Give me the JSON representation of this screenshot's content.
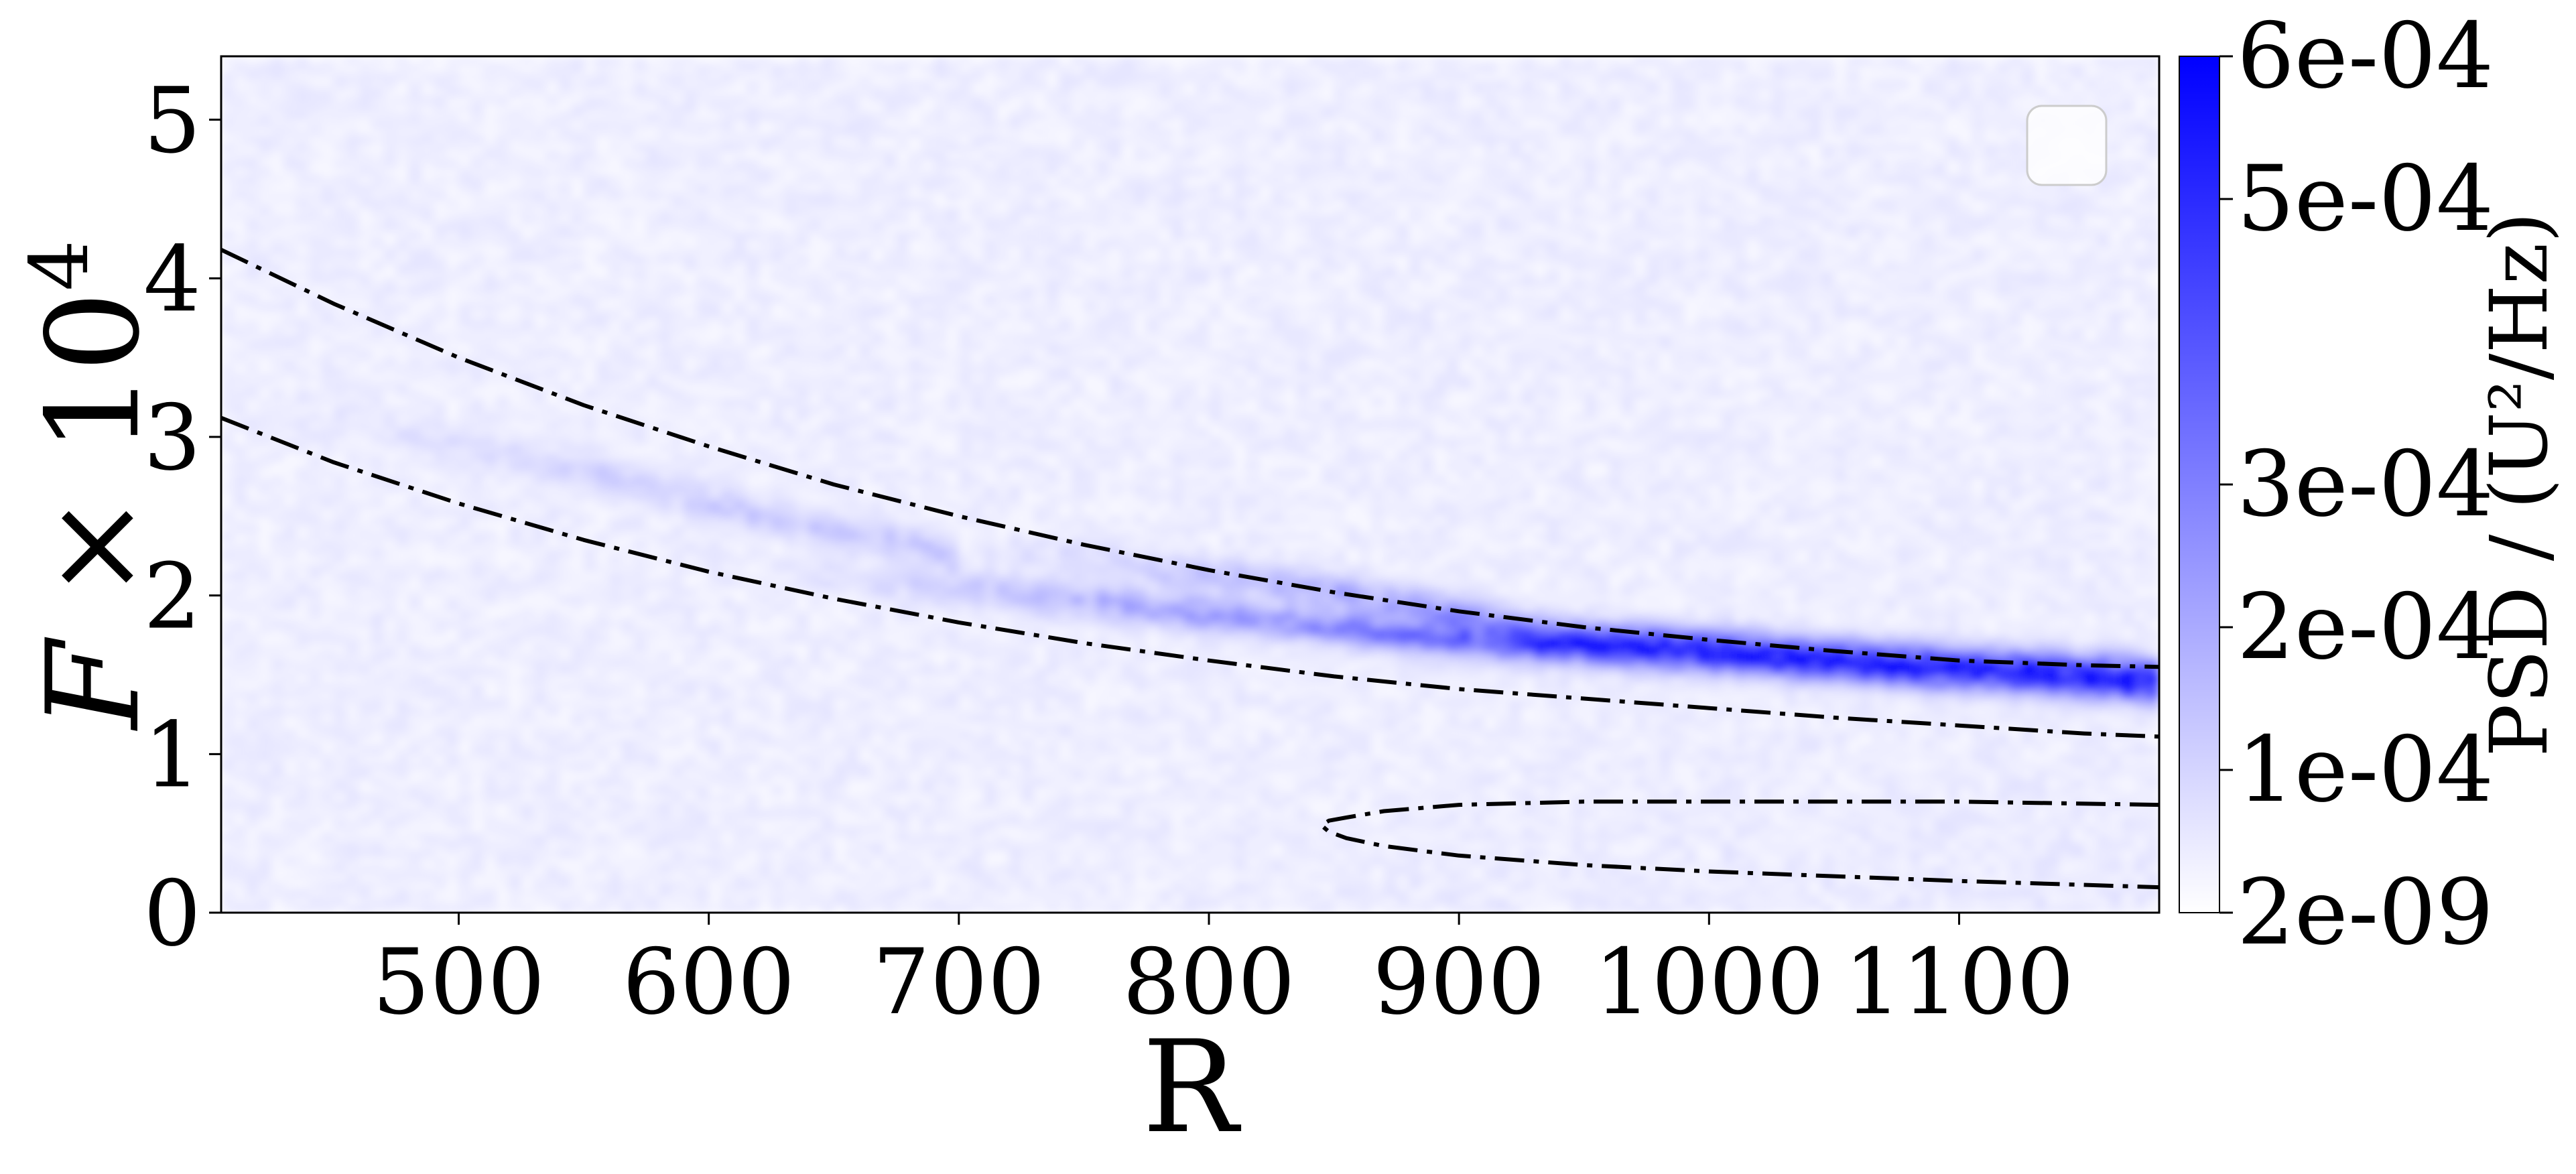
{
  "chart_data": {
    "type": "heatmap",
    "title": "",
    "xlabel": "R",
    "ylabel": "F × 10",
    "ylabel_exponent": "4",
    "xlim": [
      405,
      1180
    ],
    "ylim": [
      0,
      5.4
    ],
    "xticks": [
      "500",
      "600",
      "700",
      "800",
      "900",
      "1000",
      "1100"
    ],
    "xtick_values": [
      500,
      600,
      700,
      800,
      900,
      1000,
      1100
    ],
    "yticks": [
      "0",
      "1",
      "2",
      "3",
      "4",
      "5"
    ],
    "ytick_values": [
      0,
      1,
      2,
      3,
      4,
      5
    ],
    "colorbar": {
      "label": "PSD / (U²/Hz)",
      "ticks": [
        "2e-09",
        "1e-04",
        "2e-04",
        "3e-04",
        "5e-04",
        "6e-04"
      ],
      "tick_values": [
        2e-09,
        0.0001,
        0.0002,
        0.0003,
        0.0005,
        0.0006
      ],
      "range": [
        2e-09,
        0.0006
      ],
      "color_low": "#ffffff",
      "color_high": "#0000ff"
    },
    "legend": {
      "placement": "top-right",
      "entries": []
    },
    "grid": false,
    "background_noise_level": 4e-05,
    "ridges": [
      {
        "x_start": 620,
        "x_end": 1180,
        "y": [
          [
            620,
            2.15
          ],
          [
            700,
            2.05
          ],
          [
            760,
            1.95
          ],
          [
            820,
            1.85
          ],
          [
            880,
            1.75
          ],
          [
            940,
            1.67
          ],
          [
            1000,
            1.62
          ],
          [
            1060,
            1.55
          ],
          [
            1120,
            1.48
          ],
          [
            1180,
            1.42
          ]
        ],
        "peak": 0.0005
      },
      {
        "x_start": 700,
        "x_end": 1180,
        "y": [
          [
            700,
            2.3
          ],
          [
            760,
            2.2
          ],
          [
            820,
            2.1
          ],
          [
            880,
            1.95
          ],
          [
            940,
            1.75
          ],
          [
            1000,
            1.7
          ],
          [
            1060,
            1.62
          ],
          [
            1120,
            1.57
          ],
          [
            1180,
            1.52
          ]
        ],
        "peak": 0.0004
      },
      {
        "x_start": 430,
        "x_end": 700,
        "y": [
          [
            430,
            3.2
          ],
          [
            500,
            2.95
          ],
          [
            560,
            2.75
          ],
          [
            620,
            2.5
          ],
          [
            700,
            2.25
          ]
        ],
        "peak": 0.00012
      }
    ],
    "series": [
      {
        "style": "dash-dot",
        "color": "#000000",
        "x": [
          405,
          450,
          500,
          550,
          600,
          650,
          700,
          750,
          800,
          850,
          900,
          950,
          1000,
          1050,
          1100,
          1150,
          1180
        ],
        "y": [
          4.18,
          3.84,
          3.5,
          3.2,
          2.94,
          2.7,
          2.5,
          2.32,
          2.16,
          2.02,
          1.9,
          1.8,
          1.72,
          1.65,
          1.59,
          1.56,
          1.55
        ]
      },
      {
        "style": "dash-dot",
        "color": "#000000",
        "x": [
          405,
          450,
          500,
          550,
          600,
          650,
          700,
          750,
          800,
          850,
          900,
          950,
          1000,
          1050,
          1100,
          1150,
          1180
        ],
        "y": [
          3.12,
          2.84,
          2.58,
          2.35,
          2.15,
          1.98,
          1.83,
          1.7,
          1.59,
          1.49,
          1.41,
          1.35,
          1.29,
          1.23,
          1.18,
          1.13,
          1.11
        ]
      },
      {
        "style": "dash-dot",
        "color": "#000000",
        "x": [
          1180,
          1100,
          1000,
          950,
          900,
          870,
          855,
          848,
          845,
          848,
          855,
          870,
          900,
          950,
          1000,
          1100,
          1180
        ],
        "y": [
          0.68,
          0.7,
          0.7,
          0.7,
          0.68,
          0.64,
          0.6,
          0.58,
          0.55,
          0.51,
          0.47,
          0.42,
          0.36,
          0.3,
          0.26,
          0.2,
          0.16
        ]
      }
    ]
  }
}
